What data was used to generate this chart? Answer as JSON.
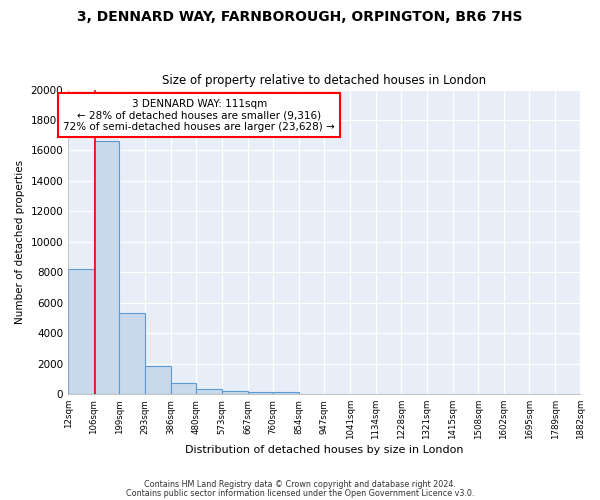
{
  "title": "3, DENNARD WAY, FARNBOROUGH, ORPINGTON, BR6 7HS",
  "subtitle": "Size of property relative to detached houses in London",
  "xlabel": "Distribution of detached houses by size in London",
  "ylabel": "Number of detached properties",
  "bin_edges": [
    12,
    106,
    199,
    293,
    386,
    480,
    573,
    667,
    760,
    854,
    947,
    1041,
    1134,
    1228,
    1321,
    1415,
    1508,
    1602,
    1695,
    1789,
    1882
  ],
  "bar_heights": [
    8200,
    16600,
    5300,
    1820,
    760,
    310,
    200,
    135,
    115,
    0,
    0,
    0,
    0,
    0,
    0,
    0,
    0,
    0,
    0,
    0
  ],
  "bar_color": "#c9d9ec",
  "bar_edge_color": "#5b9bd5",
  "bg_color": "#e8eef7",
  "red_line_x": 111,
  "ylim": [
    0,
    20000
  ],
  "ann_line1": "3 DENNARD WAY: 111sqm",
  "ann_line2": "← 28% of detached houses are smaller (9,316)",
  "ann_line3": "72% of semi-detached houses are larger (23,628) →",
  "footer1": "Contains HM Land Registry data © Crown copyright and database right 2024.",
  "footer2": "Contains public sector information licensed under the Open Government Licence v3.0.",
  "tick_labels": [
    "12sqm",
    "106sqm",
    "199sqm",
    "293sqm",
    "386sqm",
    "480sqm",
    "573sqm",
    "667sqm",
    "760sqm",
    "854sqm",
    "947sqm",
    "1041sqm",
    "1134sqm",
    "1228sqm",
    "1321sqm",
    "1415sqm",
    "1508sqm",
    "1602sqm",
    "1695sqm",
    "1789sqm",
    "1882sqm"
  ]
}
